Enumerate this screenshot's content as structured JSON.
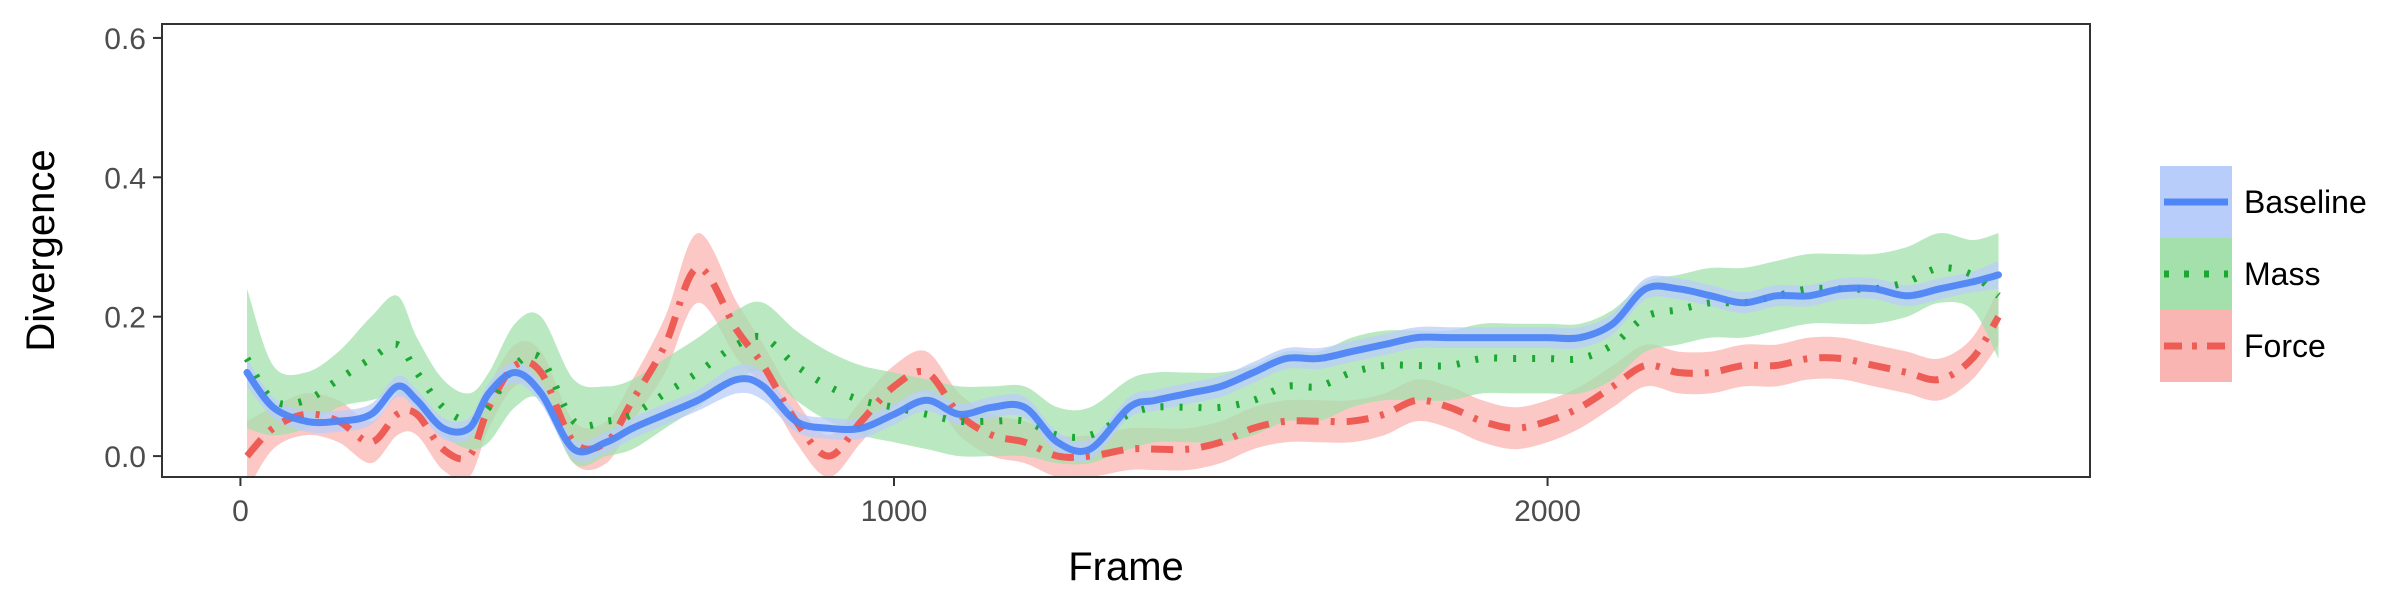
{
  "chart_data": {
    "type": "line",
    "title": "",
    "xlabel": "Frame",
    "ylabel": "Divergence",
    "xlim": [
      -120,
      2830
    ],
    "ylim": [
      -0.03,
      0.62
    ],
    "x_ticks": [
      0,
      1000,
      2000
    ],
    "x_tick_labels": [
      "0",
      "1000",
      "2000"
    ],
    "y_ticks": [
      0.0,
      0.2,
      0.4,
      0.6
    ],
    "y_tick_labels": [
      "0.0",
      "0.2",
      "0.4",
      "0.6"
    ],
    "grid": false,
    "legend_position": "right",
    "series": [
      {
        "name": "Baseline",
        "color": "#4f86f7",
        "band_color": "#b9cdfa",
        "line_style": "solid",
        "x": [
          10,
          50,
          100,
          150,
          200,
          240,
          270,
          310,
          350,
          380,
          420,
          460,
          510,
          560,
          600,
          650,
          700,
          760,
          800,
          850,
          900,
          950,
          1000,
          1050,
          1100,
          1150,
          1200,
          1250,
          1300,
          1360,
          1400,
          1450,
          1500,
          1550,
          1600,
          1650,
          1700,
          1750,
          1800,
          1850,
          1900,
          1950,
          2000,
          2050,
          2100,
          2150,
          2200,
          2250,
          2300,
          2350,
          2400,
          2450,
          2500,
          2550,
          2600,
          2650,
          2690
        ],
        "y": [
          0.12,
          0.07,
          0.05,
          0.05,
          0.06,
          0.1,
          0.08,
          0.04,
          0.04,
          0.09,
          0.12,
          0.09,
          0.01,
          0.02,
          0.04,
          0.06,
          0.08,
          0.11,
          0.1,
          0.05,
          0.04,
          0.04,
          0.06,
          0.08,
          0.06,
          0.07,
          0.07,
          0.02,
          0.01,
          0.07,
          0.08,
          0.09,
          0.1,
          0.12,
          0.14,
          0.14,
          0.15,
          0.16,
          0.17,
          0.17,
          0.17,
          0.17,
          0.17,
          0.17,
          0.19,
          0.24,
          0.24,
          0.23,
          0.22,
          0.23,
          0.23,
          0.24,
          0.24,
          0.23,
          0.24,
          0.25,
          0.26
        ],
        "band": [
          0.02,
          0.015,
          0.015,
          0.015,
          0.015,
          0.015,
          0.015,
          0.015,
          0.015,
          0.015,
          0.015,
          0.015,
          0.015,
          0.015,
          0.015,
          0.015,
          0.015,
          0.02,
          0.02,
          0.015,
          0.015,
          0.015,
          0.015,
          0.015,
          0.015,
          0.015,
          0.015,
          0.015,
          0.015,
          0.015,
          0.015,
          0.015,
          0.015,
          0.015,
          0.015,
          0.015,
          0.015,
          0.015,
          0.015,
          0.015,
          0.015,
          0.015,
          0.015,
          0.015,
          0.015,
          0.015,
          0.015,
          0.015,
          0.015,
          0.015,
          0.015,
          0.015,
          0.015,
          0.015,
          0.015,
          0.015,
          0.02
        ]
      },
      {
        "name": "Mass",
        "color": "#1aa832",
        "band_color": "#a3e0ac",
        "line_style": "dotted",
        "x": [
          10,
          50,
          100,
          150,
          200,
          240,
          270,
          310,
          350,
          380,
          420,
          460,
          510,
          560,
          600,
          650,
          700,
          760,
          800,
          850,
          900,
          950,
          1000,
          1050,
          1100,
          1150,
          1200,
          1250,
          1300,
          1360,
          1400,
          1450,
          1500,
          1550,
          1600,
          1650,
          1700,
          1750,
          1800,
          1850,
          1900,
          1950,
          2000,
          2050,
          2100,
          2150,
          2200,
          2250,
          2300,
          2350,
          2400,
          2450,
          2500,
          2550,
          2600,
          2650,
          2690
        ],
        "y": [
          0.14,
          0.08,
          0.08,
          0.11,
          0.14,
          0.16,
          0.12,
          0.07,
          0.05,
          0.07,
          0.13,
          0.14,
          0.05,
          0.05,
          0.06,
          0.09,
          0.12,
          0.16,
          0.17,
          0.13,
          0.1,
          0.08,
          0.07,
          0.06,
          0.05,
          0.05,
          0.05,
          0.03,
          0.03,
          0.06,
          0.07,
          0.07,
          0.07,
          0.08,
          0.1,
          0.1,
          0.12,
          0.13,
          0.13,
          0.13,
          0.14,
          0.14,
          0.14,
          0.14,
          0.16,
          0.2,
          0.21,
          0.22,
          0.22,
          0.23,
          0.24,
          0.24,
          0.24,
          0.25,
          0.27,
          0.26,
          0.23
        ],
        "band": [
          0.1,
          0.05,
          0.04,
          0.04,
          0.06,
          0.07,
          0.05,
          0.04,
          0.04,
          0.05,
          0.06,
          0.06,
          0.06,
          0.05,
          0.05,
          0.05,
          0.05,
          0.05,
          0.05,
          0.05,
          0.05,
          0.05,
          0.05,
          0.05,
          0.05,
          0.05,
          0.05,
          0.04,
          0.04,
          0.05,
          0.05,
          0.05,
          0.05,
          0.05,
          0.05,
          0.05,
          0.05,
          0.05,
          0.05,
          0.05,
          0.05,
          0.05,
          0.05,
          0.05,
          0.05,
          0.05,
          0.05,
          0.05,
          0.05,
          0.05,
          0.05,
          0.05,
          0.05,
          0.05,
          0.05,
          0.05,
          0.09
        ]
      },
      {
        "name": "Force",
        "color": "#ee5d55",
        "band_color": "#f9b5b2",
        "line_style": "dashdot",
        "x": [
          10,
          50,
          100,
          150,
          200,
          240,
          270,
          310,
          350,
          380,
          420,
          460,
          510,
          560,
          600,
          650,
          700,
          760,
          800,
          850,
          900,
          950,
          1000,
          1050,
          1100,
          1150,
          1200,
          1250,
          1300,
          1360,
          1400,
          1450,
          1500,
          1550,
          1600,
          1650,
          1700,
          1750,
          1800,
          1850,
          1900,
          1950,
          2000,
          2050,
          2100,
          2150,
          2200,
          2250,
          2300,
          2350,
          2400,
          2450,
          2500,
          2550,
          2600,
          2650,
          2690
        ],
        "y": [
          0.0,
          0.04,
          0.06,
          0.05,
          0.02,
          0.06,
          0.06,
          0.01,
          0.0,
          0.07,
          0.13,
          0.12,
          0.02,
          0.02,
          0.08,
          0.16,
          0.27,
          0.18,
          0.13,
          0.05,
          0.0,
          0.05,
          0.1,
          0.12,
          0.06,
          0.03,
          0.02,
          0.0,
          0.0,
          0.01,
          0.01,
          0.01,
          0.02,
          0.04,
          0.05,
          0.05,
          0.05,
          0.06,
          0.08,
          0.07,
          0.05,
          0.04,
          0.05,
          0.07,
          0.1,
          0.13,
          0.12,
          0.12,
          0.13,
          0.13,
          0.14,
          0.14,
          0.13,
          0.12,
          0.11,
          0.14,
          0.2
        ],
        "band": [
          0.05,
          0.03,
          0.03,
          0.03,
          0.03,
          0.03,
          0.03,
          0.03,
          0.03,
          0.03,
          0.03,
          0.03,
          0.03,
          0.03,
          0.03,
          0.04,
          0.05,
          0.04,
          0.03,
          0.03,
          0.03,
          0.03,
          0.03,
          0.03,
          0.03,
          0.03,
          0.03,
          0.03,
          0.03,
          0.03,
          0.03,
          0.03,
          0.03,
          0.03,
          0.03,
          0.03,
          0.03,
          0.03,
          0.03,
          0.03,
          0.03,
          0.03,
          0.03,
          0.03,
          0.03,
          0.03,
          0.03,
          0.03,
          0.03,
          0.03,
          0.03,
          0.03,
          0.03,
          0.03,
          0.03,
          0.03,
          0.04
        ]
      }
    ]
  }
}
